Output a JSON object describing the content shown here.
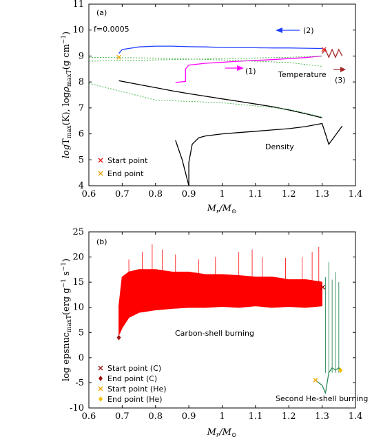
{
  "chart_data": [
    {
      "type": "line",
      "panel_label": "(a)",
      "xlabel": "M_r/M_⊙",
      "ylabel": "logT_max(K), logρ_maxT(g cm⁻¹)",
      "xlim": [
        0.6,
        1.4
      ],
      "ylim": [
        4,
        11
      ],
      "xticks": [
        "0.6",
        "0.7",
        "0.8",
        "0.9",
        "1",
        "1.1",
        "1.2",
        "1.3",
        "1.4"
      ],
      "yticks": [
        "4",
        "5",
        "6",
        "7",
        "8",
        "9",
        "10",
        "11"
      ],
      "grid": false,
      "legend_position": "bottom-left",
      "legend": [
        {
          "label": "Start point",
          "marker": "x",
          "color": "#e41a1c"
        },
        {
          "label": "End point",
          "marker": "x",
          "color": "#f0a800"
        }
      ],
      "annotations": {
        "f": "f=0.0005",
        "arrow1": "(1)",
        "arrow2": "(2)",
        "arrow3": "(3)",
        "temperature": "Temperature",
        "density": "Density"
      },
      "series": [
        {
          "color": "#1f3fff",
          "x": [
            0.69,
            0.7,
            0.75,
            0.8,
            0.85,
            0.9,
            0.95,
            1.0,
            1.05,
            1.1,
            1.15,
            1.2,
            1.25,
            1.3
          ],
          "y": [
            9.1,
            9.25,
            9.35,
            9.38,
            9.38,
            9.36,
            9.35,
            9.33,
            9.32,
            9.32,
            9.31,
            9.31,
            9.3,
            9.29
          ]
        },
        {
          "color": "#ff00ff",
          "x": [
            0.86,
            0.89,
            0.89,
            0.9,
            0.95,
            1.0,
            1.05,
            1.1,
            1.15,
            1.2,
            1.25,
            1.3
          ],
          "y": [
            7.98,
            8.02,
            8.5,
            8.65,
            8.72,
            8.76,
            8.8,
            8.83,
            8.86,
            8.9,
            8.94,
            9.0
          ]
        },
        {
          "color": "#a52a2a",
          "x": [
            1.3,
            1.31,
            1.32,
            1.33,
            1.34,
            1.35,
            1.36
          ],
          "y": [
            9.1,
            9.25,
            8.95,
            9.25,
            8.95,
            9.25,
            9.0
          ]
        },
        {
          "color": "#000000",
          "x": [
            0.69,
            0.75,
            0.8,
            0.85,
            0.9,
            0.95,
            1.0,
            1.05,
            1.1,
            1.15,
            1.2,
            1.25,
            1.3
          ],
          "y": [
            8.05,
            7.9,
            7.78,
            7.66,
            7.55,
            7.45,
            7.35,
            7.25,
            7.15,
            7.05,
            6.92,
            6.78,
            6.62
          ]
        },
        {
          "color": "#000000",
          "x": [
            0.86,
            0.88,
            0.9,
            0.9,
            0.91,
            0.93,
            0.95,
            1.0,
            1.05,
            1.1,
            1.15,
            1.2,
            1.25,
            1.3,
            1.32,
            1.36
          ],
          "y": [
            5.75,
            5.0,
            4.0,
            4.9,
            5.6,
            5.85,
            5.92,
            6.0,
            6.05,
            6.1,
            6.15,
            6.2,
            6.28,
            6.4,
            5.6,
            6.3
          ]
        },
        {
          "color": "#3fb03f",
          "x": [
            0.6,
            0.8,
            1.0,
            1.2,
            1.3
          ],
          "y": [
            7.95,
            7.3,
            7.2,
            6.95,
            6.65
          ]
        },
        {
          "color": "#3fb03f",
          "x": [
            0.6,
            0.8,
            1.0,
            1.2,
            1.3
          ],
          "y": [
            8.8,
            8.85,
            8.9,
            8.95,
            9.0
          ]
        },
        {
          "color": "#3fb03f",
          "x": [
            0.6,
            0.8,
            1.0,
            1.2,
            1.3
          ],
          "y": [
            8.95,
            8.92,
            8.85,
            8.75,
            8.6
          ]
        }
      ],
      "points": [
        {
          "name": "start",
          "x": 1.305,
          "y": 9.25,
          "marker": "x",
          "color": "#e41a1c"
        },
        {
          "name": "end",
          "x": 0.69,
          "y": 8.95,
          "marker": "x",
          "color": "#f0a800"
        }
      ]
    },
    {
      "type": "line",
      "panel_label": "(b)",
      "xlabel": "M_r/M_⊙",
      "ylabel": "log epsnuc_maxT(erg g⁻¹ s⁻¹)",
      "xlim": [
        0.6,
        1.4
      ],
      "ylim": [
        -10,
        25
      ],
      "xticks": [
        "0.6",
        "0.7",
        "0.8",
        "0.9",
        "1",
        "1.1",
        "1.2",
        "1.3",
        "1.4"
      ],
      "yticks": [
        "-10",
        "-5",
        "0",
        "5",
        "10",
        "15",
        "20",
        "25"
      ],
      "grid": false,
      "legend_position": "bottom-left",
      "legend": [
        {
          "label": "Start point (C)",
          "marker": "x",
          "color": "#a01010"
        },
        {
          "label": "End point (C)",
          "marker": "diamond",
          "color": "#a01010"
        },
        {
          "label": "Start point (He)",
          "marker": "x",
          "color": "#f0a800"
        },
        {
          "label": "End point (He)",
          "marker": "diamond",
          "color": "#f0c000"
        }
      ],
      "annotations": {
        "carbon": "Carbon-shell burning",
        "helium": "Second He-shell burning"
      },
      "series": [
        {
          "name": "carbon-lower",
          "color": "#ff0000",
          "x": [
            0.69,
            0.7,
            0.72,
            0.75,
            0.8,
            0.85,
            0.9,
            0.95,
            1.0,
            1.05,
            1.1,
            1.15,
            1.2,
            1.25,
            1.3
          ],
          "y": [
            4.5,
            6.0,
            8.0,
            9.0,
            9.5,
            9.8,
            10.0,
            10.0,
            10.2,
            10.0,
            10.3,
            10.0,
            10.2,
            10.0,
            10.3
          ]
        },
        {
          "name": "carbon-upper",
          "color": "#ff0000",
          "x": [
            0.69,
            0.7,
            0.72,
            0.75,
            0.8,
            0.85,
            0.9,
            0.95,
            1.0,
            1.05,
            1.1,
            1.15,
            1.2,
            1.25,
            1.3
          ],
          "y": [
            10.0,
            16.0,
            17.0,
            17.5,
            17.5,
            17.0,
            17.0,
            16.5,
            16.5,
            16.3,
            16.0,
            16.0,
            15.5,
            15.5,
            15.0
          ]
        },
        {
          "name": "helium",
          "color": "#2e8b57",
          "x": [
            1.28,
            1.3,
            1.31,
            1.32,
            1.33,
            1.34,
            1.35,
            1.355
          ],
          "y": [
            -4.5,
            -5.5,
            -7.0,
            -3.0,
            -2.0,
            -2.5,
            -2.0,
            -2.5
          ]
        }
      ],
      "spikes_carbon": [
        [
          0.72,
          19.5
        ],
        [
          0.76,
          21.0
        ],
        [
          0.79,
          22.5
        ],
        [
          0.82,
          21.5
        ],
        [
          0.86,
          20.5
        ],
        [
          0.93,
          19.5
        ],
        [
          0.98,
          20.0
        ],
        [
          1.05,
          21.0
        ],
        [
          1.09,
          21.5
        ],
        [
          1.12,
          20.0
        ],
        [
          1.19,
          19.8
        ],
        [
          1.24,
          20.0
        ],
        [
          1.27,
          21.0
        ],
        [
          1.29,
          22.0
        ]
      ],
      "spikes_helium": [
        [
          1.31,
          16.0
        ],
        [
          1.32,
          19.0
        ],
        [
          1.33,
          15.5
        ],
        [
          1.34,
          17.0
        ],
        [
          1.35,
          15.0
        ]
      ],
      "points": [
        {
          "name": "start-c",
          "x": 1.302,
          "y": 14.0,
          "marker": "x",
          "color": "#a01010"
        },
        {
          "name": "end-c",
          "x": 0.69,
          "y": 4.0,
          "marker": "diamond",
          "color": "#a01010"
        },
        {
          "name": "start-he",
          "x": 1.28,
          "y": -4.5,
          "marker": "x",
          "color": "#f0a800"
        },
        {
          "name": "end-he",
          "x": 1.355,
          "y": -2.5,
          "marker": "diamond",
          "color": "#f0c000"
        }
      ]
    }
  ]
}
